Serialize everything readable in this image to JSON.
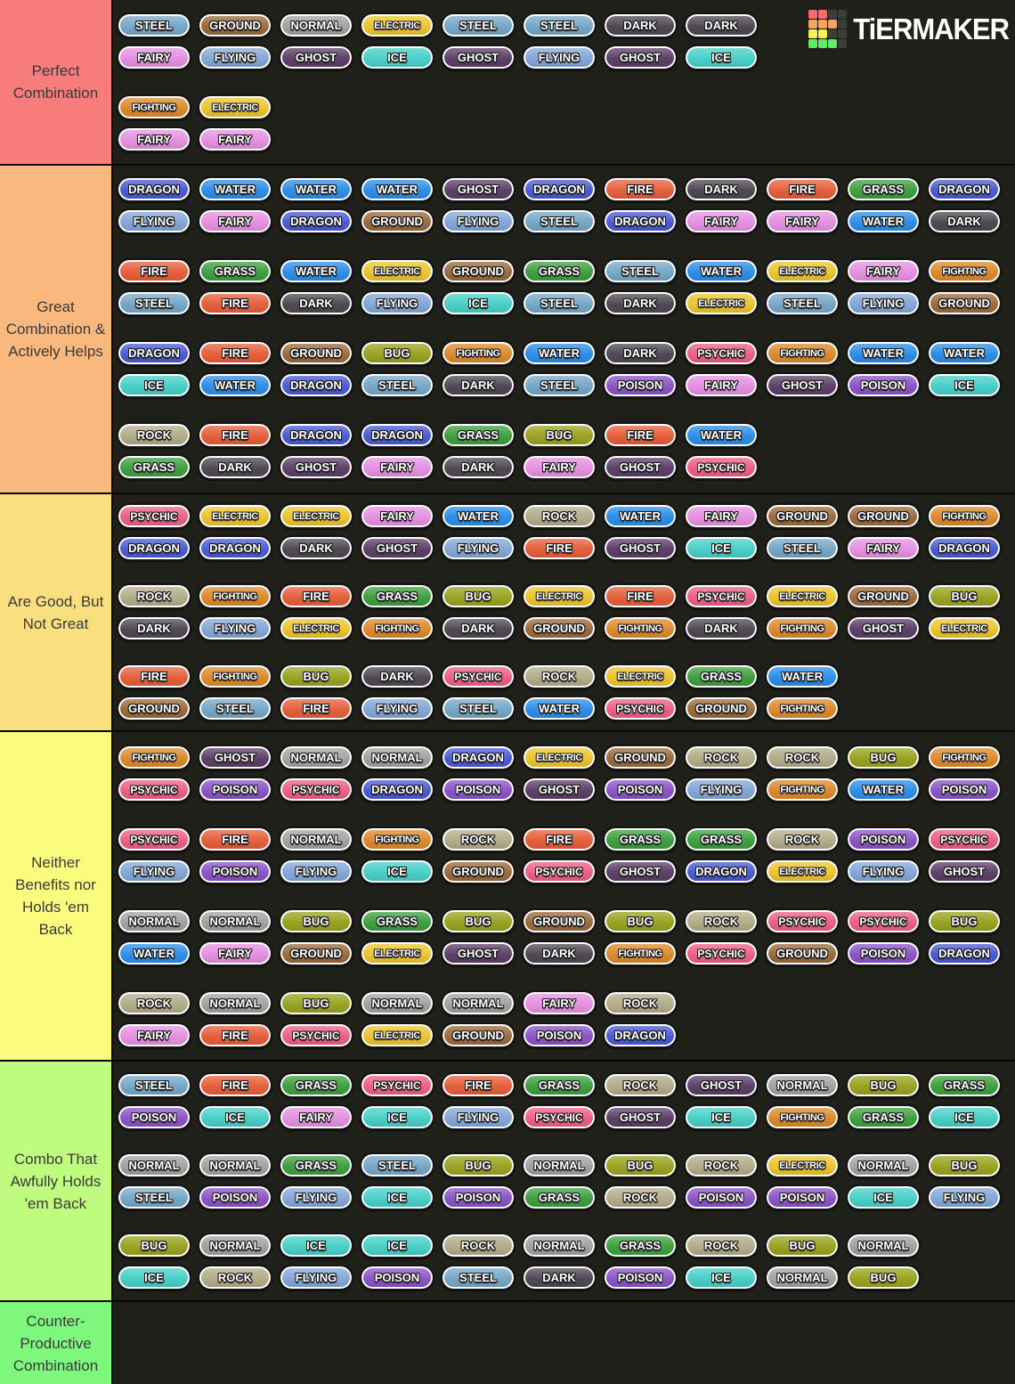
{
  "logo": {
    "text": "TiERMAKER",
    "icon_colors": [
      [
        "#f96a6a",
        "#f96a6a",
        "#3d3d37",
        "#3d3d37"
      ],
      [
        "#f7a55e",
        "#f7a55e",
        "#f7a55e",
        "#3d3d37"
      ],
      [
        "#f9f156",
        "#f9f156",
        "#3d3d37",
        "#3d3d37"
      ],
      [
        "#5fee63",
        "#5fee63",
        "#5fee63",
        "#3d3d37"
      ]
    ]
  },
  "type_colors": {
    "NORMAL": "#a3a3a3",
    "FIRE": "#e5603d",
    "WATER": "#2f8fe8",
    "ELECTRIC": "#edc531",
    "GRASS": "#40a041",
    "ICE": "#4ad0c8",
    "FIGHTING": "#dd8b2e",
    "POISON": "#8d55c8",
    "GROUND": "#9c6c3c",
    "FLYING": "#84a8d8",
    "PSYCHIC": "#ee6088",
    "BUG": "#9aa422",
    "ROCK": "#b3ad8a",
    "GHOST": "#5e4169",
    "DRAGON": "#4d5cd4",
    "DARK": "#514a54",
    "STEEL": "#77a8c8",
    "FAIRY": "#e691e2"
  },
  "tiers": [
    {
      "label": "Perfect Combination",
      "color": "#f87c7c",
      "rows": [
        [
          [
            "STEEL",
            "FAIRY"
          ],
          [
            "GROUND",
            "FLYING"
          ],
          [
            "NORMAL",
            "GHOST"
          ],
          [
            "ELECTRIC",
            "ICE"
          ],
          [
            "STEEL",
            "GHOST"
          ],
          [
            "STEEL",
            "FLYING"
          ],
          [
            "DARK",
            "GHOST"
          ],
          [
            "DARK",
            "ICE"
          ]
        ],
        [
          [
            "FIGHTING",
            "FAIRY"
          ],
          [
            "ELECTRIC",
            "FAIRY"
          ]
        ]
      ]
    },
    {
      "label": "Great Combination & Actively Helps",
      "color": "#f9b97e",
      "rows": [
        [
          [
            "DRAGON",
            "FLYING"
          ],
          [
            "WATER",
            "FAIRY"
          ],
          [
            "WATER",
            "DRAGON"
          ],
          [
            "WATER",
            "GROUND"
          ],
          [
            "GHOST",
            "FLYING"
          ],
          [
            "DRAGON",
            "STEEL"
          ],
          [
            "FIRE",
            "DRAGON"
          ],
          [
            "DARK",
            "FAIRY"
          ],
          [
            "FIRE",
            "FAIRY"
          ],
          [
            "GRASS",
            "WATER"
          ],
          [
            "DRAGON",
            "DARK"
          ]
        ],
        [
          [
            "FIRE",
            "STEEL"
          ],
          [
            "GRASS",
            "FIRE"
          ],
          [
            "WATER",
            "DARK"
          ],
          [
            "ELECTRIC",
            "FLYING"
          ],
          [
            "GROUND",
            "ICE"
          ],
          [
            "GRASS",
            "STEEL"
          ],
          [
            "STEEL",
            "DARK"
          ],
          [
            "WATER",
            "ELECTRIC"
          ],
          [
            "ELECTRIC",
            "STEEL"
          ],
          [
            "FAIRY",
            "FLYING"
          ],
          [
            "FIGHTING",
            "GROUND"
          ]
        ],
        [
          [
            "DRAGON",
            "ICE"
          ],
          [
            "FIRE",
            "WATER"
          ],
          [
            "GROUND",
            "DRAGON"
          ],
          [
            "BUG",
            "STEEL"
          ],
          [
            "FIGHTING",
            "DARK"
          ],
          [
            "WATER",
            "STEEL"
          ],
          [
            "DARK",
            "POISON"
          ],
          [
            "PSYCHIC",
            "FAIRY"
          ],
          [
            "FIGHTING",
            "GHOST"
          ],
          [
            "WATER",
            "POISON"
          ],
          [
            "WATER",
            "ICE"
          ]
        ],
        [
          [
            "ROCK",
            "GRASS"
          ],
          [
            "FIRE",
            "DARK"
          ],
          [
            "DRAGON",
            "GHOST"
          ],
          [
            "DRAGON",
            "FAIRY"
          ],
          [
            "GRASS",
            "DARK"
          ],
          [
            "BUG",
            "FAIRY"
          ],
          [
            "FIRE",
            "GHOST"
          ],
          [
            "WATER",
            "PSYCHIC"
          ]
        ]
      ]
    },
    {
      "label": "Are Good, But Not Great",
      "color": "#fadf80",
      "rows": [
        [
          [
            "PSYCHIC",
            "DRAGON"
          ],
          [
            "ELECTRIC",
            "DRAGON"
          ],
          [
            "ELECTRIC",
            "DARK"
          ],
          [
            "FAIRY",
            "GHOST"
          ],
          [
            "WATER",
            "FLYING"
          ],
          [
            "ROCK",
            "FIRE"
          ],
          [
            "WATER",
            "GHOST"
          ],
          [
            "FAIRY",
            "ICE"
          ],
          [
            "GROUND",
            "STEEL"
          ],
          [
            "GROUND",
            "FAIRY"
          ],
          [
            "FIGHTING",
            "DRAGON"
          ]
        ],
        [
          [
            "ROCK",
            "DARK"
          ],
          [
            "FIGHTING",
            "FLYING"
          ],
          [
            "FIRE",
            "ELECTRIC"
          ],
          [
            "GRASS",
            "FIGHTING"
          ],
          [
            "BUG",
            "DARK"
          ],
          [
            "ELECTRIC",
            "GROUND"
          ],
          [
            "FIRE",
            "FIGHTING"
          ],
          [
            "PSYCHIC",
            "DARK"
          ],
          [
            "ELECTRIC",
            "FIGHTING"
          ],
          [
            "GROUND",
            "GHOST"
          ],
          [
            "BUG",
            "ELECTRIC"
          ]
        ],
        [
          [
            "FIRE",
            "GROUND"
          ],
          [
            "FIGHTING",
            "STEEL"
          ],
          [
            "BUG",
            "FIRE"
          ],
          [
            "DARK",
            "FLYING"
          ],
          [
            "PSYCHIC",
            "STEEL"
          ],
          [
            "ROCK",
            "WATER"
          ],
          [
            "ELECTRIC",
            "PSYCHIC"
          ],
          [
            "GRASS",
            "GROUND"
          ],
          [
            "WATER",
            "FIGHTING"
          ]
        ]
      ]
    },
    {
      "label": "Neither Benefits nor Holds 'em Back",
      "color": "#fbfb7e",
      "rows": [
        [
          [
            "FIGHTING",
            "PSYCHIC"
          ],
          [
            "GHOST",
            "POISON"
          ],
          [
            "NORMAL",
            "PSYCHIC"
          ],
          [
            "NORMAL",
            "DRAGON"
          ],
          [
            "DRAGON",
            "POISON"
          ],
          [
            "ELECTRIC",
            "GHOST"
          ],
          [
            "GROUND",
            "POISON"
          ],
          [
            "ROCK",
            "FLYING"
          ],
          [
            "ROCK",
            "FIGHTING"
          ],
          [
            "BUG",
            "WATER"
          ],
          [
            "FIGHTING",
            "POISON"
          ]
        ],
        [
          [
            "PSYCHIC",
            "FLYING"
          ],
          [
            "FIRE",
            "POISON"
          ],
          [
            "NORMAL",
            "FLYING"
          ],
          [
            "FIGHTING",
            "ICE"
          ],
          [
            "ROCK",
            "GROUND"
          ],
          [
            "FIRE",
            "PSYCHIC"
          ],
          [
            "GRASS",
            "GHOST"
          ],
          [
            "GRASS",
            "DRAGON"
          ],
          [
            "ROCK",
            "ELECTRIC"
          ],
          [
            "POISON",
            "FLYING"
          ],
          [
            "PSYCHIC",
            "GHOST"
          ]
        ],
        [
          [
            "NORMAL",
            "WATER"
          ],
          [
            "NORMAL",
            "FAIRY"
          ],
          [
            "BUG",
            "GROUND"
          ],
          [
            "GRASS",
            "ELECTRIC"
          ],
          [
            "BUG",
            "GHOST"
          ],
          [
            "GROUND",
            "DARK"
          ],
          [
            "BUG",
            "FIGHTING"
          ],
          [
            "ROCK",
            "PSYCHIC"
          ],
          [
            "PSYCHIC",
            "GROUND"
          ],
          [
            "PSYCHIC",
            "POISON"
          ],
          [
            "BUG",
            "DRAGON"
          ]
        ],
        [
          [
            "ROCK",
            "FAIRY"
          ],
          [
            "NORMAL",
            "FIRE"
          ],
          [
            "BUG",
            "PSYCHIC"
          ],
          [
            "NORMAL",
            "ELECTRIC"
          ],
          [
            "NORMAL",
            "GROUND"
          ],
          [
            "FAIRY",
            "POISON"
          ],
          [
            "ROCK",
            "DRAGON"
          ]
        ]
      ]
    },
    {
      "label": "Combo That Awfully Holds 'em Back",
      "color": "#bffb7e",
      "rows": [
        [
          [
            "STEEL",
            "POISON"
          ],
          [
            "FIRE",
            "ICE"
          ],
          [
            "GRASS",
            "FAIRY"
          ],
          [
            "PSYCHIC",
            "ICE"
          ],
          [
            "FIRE",
            "FLYING"
          ],
          [
            "GRASS",
            "PSYCHIC"
          ],
          [
            "ROCK",
            "GHOST"
          ],
          [
            "GHOST",
            "ICE"
          ],
          [
            "NORMAL",
            "FIGHTING"
          ],
          [
            "BUG",
            "GRASS"
          ],
          [
            "GRASS",
            "ICE"
          ]
        ],
        [
          [
            "NORMAL",
            "STEEL"
          ],
          [
            "NORMAL",
            "POISON"
          ],
          [
            "GRASS",
            "FLYING"
          ],
          [
            "STEEL",
            "ICE"
          ],
          [
            "BUG",
            "POISON"
          ],
          [
            "NORMAL",
            "GRASS"
          ],
          [
            "BUG",
            "ROCK"
          ],
          [
            "ROCK",
            "POISON"
          ],
          [
            "ELECTRIC",
            "POISON"
          ],
          [
            "NORMAL",
            "ICE"
          ],
          [
            "BUG",
            "FLYING"
          ]
        ],
        [
          [
            "BUG",
            "ICE"
          ],
          [
            "NORMAL",
            "ROCK"
          ],
          [
            "ICE",
            "FLYING"
          ],
          [
            "ICE",
            "POISON"
          ],
          [
            "ROCK",
            "STEEL"
          ],
          [
            "NORMAL",
            "DARK"
          ],
          [
            "GRASS",
            "POISON"
          ],
          [
            "ROCK",
            "ICE"
          ],
          [
            "BUG",
            "NORMAL"
          ],
          [
            "NORMAL",
            "BUG"
          ]
        ]
      ]
    },
    {
      "label": "Counter-Productive Combination",
      "color": "#7df87d",
      "rows": []
    }
  ]
}
